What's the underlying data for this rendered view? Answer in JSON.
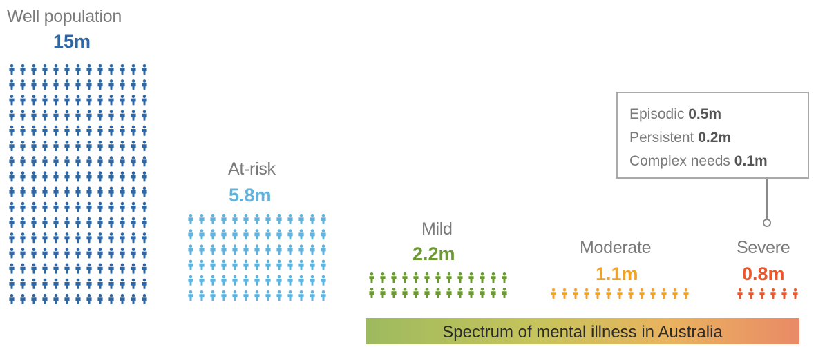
{
  "groups": [
    {
      "id": "well",
      "label": "Well population",
      "value": "15m",
      "color": "#2d67a6",
      "rows": 16,
      "cols": 13,
      "figure_height": 15
    },
    {
      "id": "atrisk",
      "label": "At-risk",
      "value": "5.8m",
      "color": "#5fb3df",
      "rows": 6,
      "cols": 13,
      "figure_height": 15
    },
    {
      "id": "mild",
      "label": "Mild",
      "value": "2.2m",
      "color": "#6b9a32",
      "rows": 2,
      "cols": 13,
      "figure_height": 15
    },
    {
      "id": "moderate",
      "label": "Moderate",
      "value": "1.1m",
      "color": "#f0a32a",
      "rows": 1,
      "cols": 13,
      "figure_height": 15
    },
    {
      "id": "severe",
      "label": "Severe",
      "value": "0.8m",
      "color": "#e8582c",
      "rows": 1,
      "cols": 6,
      "figure_height": 15
    }
  ],
  "severe_breakdown": [
    {
      "label": "Episodic",
      "value": "0.5m"
    },
    {
      "label": "Persistent",
      "value": "0.2m"
    },
    {
      "label": "Complex needs",
      "value": "0.1m"
    }
  ],
  "spectrum": {
    "label": "Spectrum of mental illness in Australia"
  }
}
